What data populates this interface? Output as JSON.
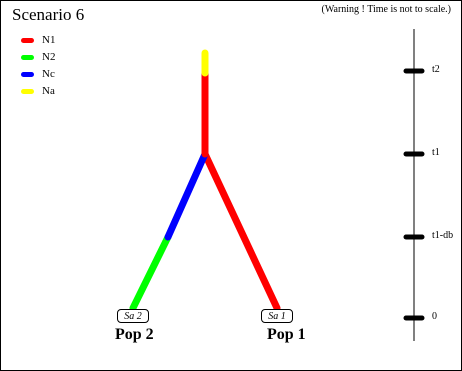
{
  "title": "Scenario 6",
  "warning": "(Warning ! Time is not to scale.)",
  "legend": [
    {
      "label": "N1",
      "color": "#ff0000"
    },
    {
      "label": "N2",
      "color": "#00ff00"
    },
    {
      "label": "Nc",
      "color": "#0000ff"
    },
    {
      "label": "Na",
      "color": "#ffff00"
    }
  ],
  "samples": [
    {
      "label": "Sa 2",
      "population": "Pop 2"
    },
    {
      "label": "Sa 1",
      "population": "Pop 1"
    }
  ],
  "time_axis": {
    "ticks": [
      {
        "label": "t2"
      },
      {
        "label": "t1"
      },
      {
        "label": "t1-db"
      },
      {
        "label": "0"
      }
    ]
  },
  "branch_colors": {
    "pop1": "#ff0000",
    "pop2_lower": "#00ff00",
    "pop2_upper": "#0000ff",
    "ancestral": "#ff0000",
    "ancestral_top": "#ffff00"
  }
}
